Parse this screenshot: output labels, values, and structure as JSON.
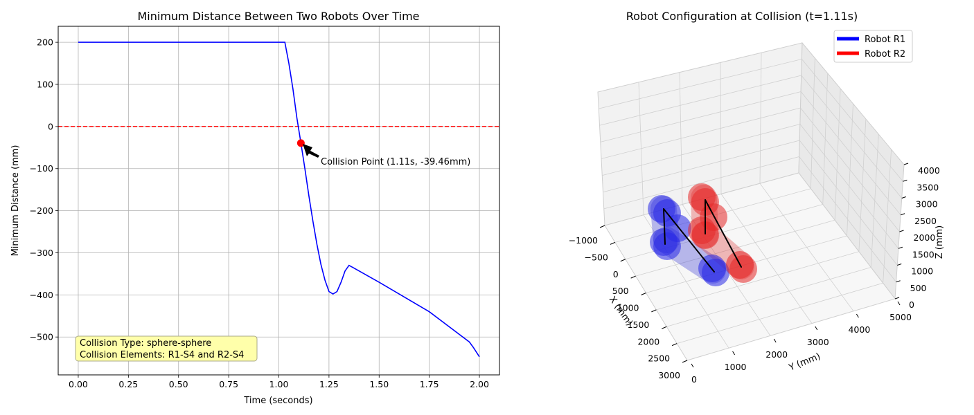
{
  "chart_data": [
    {
      "type": "line",
      "title": "Minimum Distance Between Two Robots Over Time",
      "xlabel": "Time (seconds)",
      "ylabel": "Minimum Distance (mm)",
      "xlim": [
        -0.1,
        2.1
      ],
      "ylim": [
        -590,
        238
      ],
      "xticks": [
        0.0,
        0.25,
        0.5,
        0.75,
        1.0,
        1.25,
        1.5,
        1.75,
        2.0
      ],
      "xtick_labels": [
        "0.00",
        "0.25",
        "0.50",
        "0.75",
        "1.00",
        "1.25",
        "1.50",
        "1.75",
        "2.00"
      ],
      "yticks": [
        200,
        100,
        0,
        -100,
        -200,
        -300,
        -400,
        -500
      ],
      "ytick_labels": [
        "200",
        "100",
        "0",
        "−100",
        "−200",
        "−300",
        "−400",
        "−500"
      ],
      "grid": true,
      "series": [
        {
          "color": "#0000ff",
          "x": [
            0.0,
            0.25,
            0.5,
            0.75,
            1.0,
            1.03,
            1.05,
            1.07,
            1.09,
            1.11,
            1.13,
            1.15,
            1.17,
            1.19,
            1.21,
            1.23,
            1.25,
            1.27,
            1.29,
            1.31,
            1.33,
            1.35,
            1.37,
            1.5,
            1.75,
            1.95,
            1.97,
            2.0
          ],
          "y": [
            200,
            200,
            200,
            200,
            200,
            200,
            150,
            90,
            20,
            -39.46,
            -100,
            -165,
            -225,
            -280,
            -328,
            -365,
            -392,
            -398,
            -392,
            -370,
            -343,
            -330,
            -335,
            -370,
            -440,
            -512,
            -525,
            -547
          ]
        }
      ],
      "reference_line": {
        "y": 0,
        "color": "#ff0000",
        "style": "dashed"
      },
      "collision_point": {
        "x": 1.11,
        "y": -39.46,
        "color": "#ff0000"
      },
      "annotation": "Collision Point (1.11s, -39.46mm)",
      "info_box": [
        "Collision Type: sphere-sphere",
        "Collision Elements: R1-S4 and R2-S4"
      ]
    },
    {
      "type": "3d-scatter",
      "title": "Robot Configuration at Collision (t=1.11s)",
      "xlabel": "X (mm)",
      "ylabel": "Y (mm)",
      "zlabel": "Z (mm)",
      "xlim": [
        -1000,
        3000
      ],
      "ylim": [
        0,
        5000
      ],
      "zlim": [
        0,
        4000
      ],
      "xtick_labels": [
        "−1000",
        "−500",
        "0",
        "500",
        "1000",
        "1500",
        "2000",
        "2500",
        "3000"
      ],
      "ytick_labels": [
        "0",
        "1000",
        "2000",
        "3000",
        "4000",
        "5000"
      ],
      "ztick_labels": [
        "0",
        "500",
        "1000",
        "1500",
        "2000",
        "2500",
        "3000",
        "3500",
        "4000"
      ],
      "legend": {
        "position": "top-right",
        "entries": [
          {
            "label": "Robot R1",
            "color": "#0000ff"
          },
          {
            "label": "Robot R2",
            "color": "#ff0000"
          }
        ]
      }
    }
  ]
}
